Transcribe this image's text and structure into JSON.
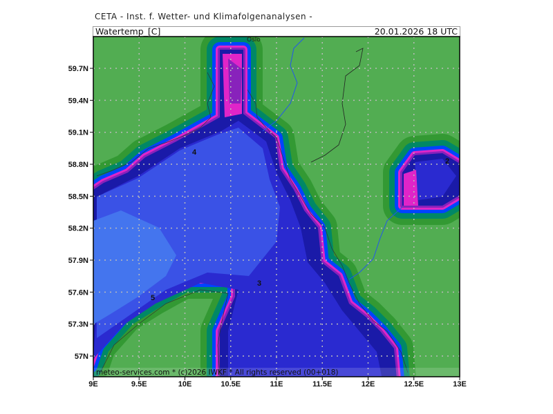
{
  "header": {
    "title": "CETA - Inst. f. Wetter- und Klimafolgenanalysen -"
  },
  "infobar": {
    "variable": "Watertemp_[C]",
    "valid_time": "20.01.2026  18 UTC"
  },
  "footer": {
    "credit": "meteo-services.com * (c)2026 IWKF * All rights reserved (00+018)"
  },
  "map": {
    "place_labels": [
      "Oslo"
    ],
    "contour_labels": [
      "4",
      "2",
      "3",
      "5"
    ],
    "lon_ticks": [
      "9E",
      "9.5E",
      "10E",
      "10.5E",
      "11E",
      "11.5E",
      "12E",
      "12.5E",
      "13E"
    ],
    "lat_ticks": [
      "57N",
      "57.3N",
      "57.6N",
      "57.9N",
      "58.2N",
      "58.5N",
      "58.8N",
      "59.1N",
      "59.4N",
      "59.7N"
    ],
    "colors": {
      "land": "#52ad52",
      "band_green": "#339933",
      "band_teal": "#008866",
      "band_blue": "#0044ff",
      "navy": "#1a1aa8",
      "purple": "#8822bb",
      "magenta": "#e025c8",
      "sea_deep": "#2a2ad0",
      "sea_main": "#3a52e6",
      "sea_light": "#4475ee",
      "coastline": "#333333",
      "river": "#2255ee",
      "grid": "#bbbbbb"
    }
  }
}
